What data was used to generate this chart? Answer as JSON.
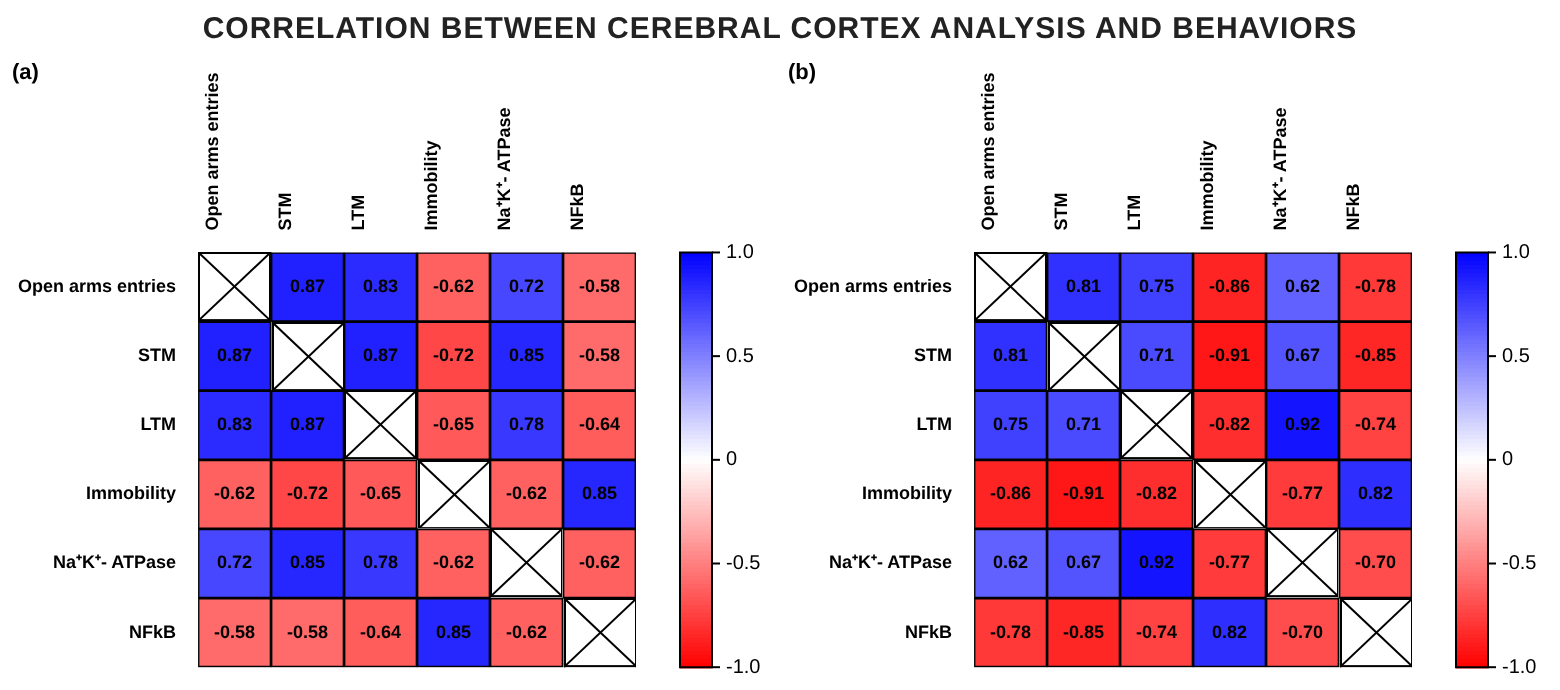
{
  "chart_data": [
    {
      "type": "heatmap",
      "title": "CORRELATION BETWEEN CEREBRAL CORTEX ANALYSIS AND BEHAVIORS",
      "subtitle": "(a)",
      "categories": [
        "Open arms entries",
        "STM",
        "LTM",
        "Immobility",
        "Na⁺K⁺- ATPase",
        "NFkB"
      ],
      "y_categories": [
        "Open arms entries",
        "STM",
        "LTM",
        "Immobility",
        "Na⁺K⁺- ATPase",
        "NFkB"
      ],
      "cells": [
        [
          null,
          0.87,
          0.83,
          -0.62,
          0.72,
          -0.58
        ],
        [
          0.87,
          null,
          0.87,
          -0.72,
          0.85,
          -0.58
        ],
        [
          0.83,
          0.87,
          null,
          -0.65,
          0.78,
          -0.64
        ],
        [
          -0.62,
          -0.72,
          -0.65,
          null,
          -0.62,
          0.85
        ],
        [
          0.72,
          0.85,
          0.78,
          -0.62,
          null,
          -0.62
        ],
        [
          -0.58,
          -0.58,
          -0.64,
          0.85,
          -0.62,
          null
        ]
      ],
      "clim": [
        -1,
        1
      ],
      "cticks": [
        {
          "value": -1,
          "label": "-1.0"
        },
        {
          "value": -0.5,
          "label": "-0.5"
        },
        0,
        {
          "value": 0.5,
          "label": "0.5"
        },
        {
          "value": 1,
          "label": "1.0"
        }
      ],
      "data_labels": true
    },
    {
      "type": "heatmap",
      "subtitle": "(b)",
      "categories": [
        "Open arms entries",
        "STM",
        "LTM",
        "Immobility",
        "Na⁺K⁺- ATPase",
        "NFkB"
      ],
      "y_categories": [
        "Open arms entries",
        "STM",
        "LTM",
        "Immobility",
        "Na⁺K⁺- ATPase",
        "NFkB"
      ],
      "cells": [
        [
          null,
          0.81,
          0.75,
          -0.86,
          0.62,
          -0.78
        ],
        [
          0.81,
          null,
          0.71,
          -0.91,
          0.67,
          -0.85
        ],
        [
          0.75,
          0.71,
          null,
          -0.82,
          0.92,
          -0.74
        ],
        [
          -0.86,
          -0.91,
          -0.82,
          null,
          -0.77,
          0.82
        ],
        [
          0.62,
          0.67,
          0.92,
          -0.77,
          null,
          -0.7
        ],
        [
          -0.78,
          -0.85,
          -0.74,
          0.82,
          -0.7,
          null
        ]
      ],
      "cell_labels": [
        [
          null,
          "0.81",
          "0.75",
          "-0.86",
          "0.62",
          "-0.78"
        ],
        [
          "0.81",
          null,
          "0.71",
          "-0.91",
          "0.67",
          "-0.85"
        ],
        [
          "0.75",
          "0.71",
          null,
          "-0.82",
          "0.92",
          "-0.74"
        ],
        [
          "-0.86",
          "-0.91",
          "-0.82",
          null,
          "-0.77",
          "0.82"
        ],
        [
          "0.62",
          "0.67",
          "0.92",
          "-0.77",
          null,
          "-0.70"
        ],
        [
          "-0.78",
          "-0.85",
          "-0.74",
          "0.82",
          "-0.70",
          null
        ]
      ],
      "clim": [
        -1,
        1
      ],
      "cticks": [
        {
          "value": -1,
          "label": "-1.0"
        },
        {
          "value": -0.5,
          "label": "-0.5"
        },
        0,
        {
          "value": 0.5,
          "label": "0.5"
        },
        {
          "value": 1,
          "label": "1.0"
        }
      ],
      "data_labels": true
    }
  ]
}
